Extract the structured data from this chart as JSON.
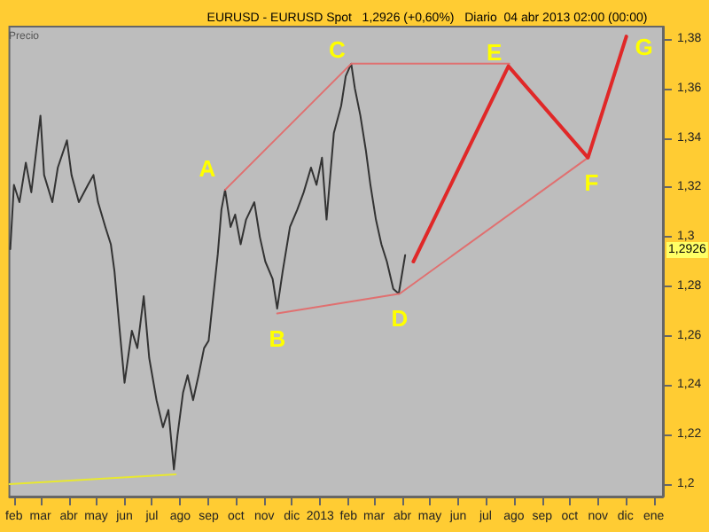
{
  "chart_data": {
    "type": "line",
    "title": "EURUSD - EURUSD Spot   1,2926 (+0,60%)   Diario  04 abr 2013 02:00 (00:00)",
    "ylabel": "Precio",
    "xlim": [
      "2012-01-27",
      "2014-01-11"
    ],
    "xticks": [
      {
        "value": "2012-02-01",
        "label": "feb"
      },
      {
        "value": "2012-03-01",
        "label": "mar"
      },
      {
        "value": "2012-04-01",
        "label": "abr"
      },
      {
        "value": "2012-05-01",
        "label": "may"
      },
      {
        "value": "2012-06-01",
        "label": "jun"
      },
      {
        "value": "2012-07-01",
        "label": "jul"
      },
      {
        "value": "2012-08-01",
        "label": "ago"
      },
      {
        "value": "2012-09-01",
        "label": "sep"
      },
      {
        "value": "2012-10-01",
        "label": "oct"
      },
      {
        "value": "2012-11-01",
        "label": "nov"
      },
      {
        "value": "2012-12-01",
        "label": "dic"
      },
      {
        "value": "2013-01-01",
        "label": "2013"
      },
      {
        "value": "2013-02-01",
        "label": "feb"
      },
      {
        "value": "2013-03-01",
        "label": "mar"
      },
      {
        "value": "2013-04-01",
        "label": "abr"
      },
      {
        "value": "2013-05-01",
        "label": "may"
      },
      {
        "value": "2013-06-01",
        "label": "jun"
      },
      {
        "value": "2013-07-01",
        "label": "jul"
      },
      {
        "value": "2013-08-01",
        "label": "ago"
      },
      {
        "value": "2013-09-01",
        "label": "sep"
      },
      {
        "value": "2013-10-01",
        "label": "oct"
      },
      {
        "value": "2013-11-01",
        "label": "nov"
      },
      {
        "value": "2013-12-01",
        "label": "dic"
      },
      {
        "value": "2014-01-01",
        "label": "ene"
      }
    ],
    "ylim": [
      1.195,
      1.385
    ],
    "yticks": [
      {
        "value": 1.2,
        "label": "1,2"
      },
      {
        "value": 1.22,
        "label": "1,22"
      },
      {
        "value": 1.24,
        "label": "1,24"
      },
      {
        "value": 1.26,
        "label": "1,26"
      },
      {
        "value": 1.28,
        "label": "1,28"
      },
      {
        "value": 1.3,
        "label": "1,3"
      },
      {
        "value": 1.32,
        "label": "1,32"
      },
      {
        "value": 1.34,
        "label": "1,34"
      },
      {
        "value": 1.36,
        "label": "1,36"
      },
      {
        "value": 1.38,
        "label": "1,38"
      }
    ],
    "series": [
      {
        "color": "#333333",
        "line_style": "solid",
        "x": [
          "2012-01-28",
          "2012-02-01",
          "2012-02-07",
          "2012-02-14",
          "2012-02-20",
          "2012-03-01",
          "2012-03-05",
          "2012-03-14",
          "2012-03-20",
          "2012-03-30",
          "2012-04-04",
          "2012-04-12",
          "2012-04-22",
          "2012-04-28",
          "2012-05-03",
          "2012-05-11",
          "2012-05-17",
          "2012-05-21",
          "2012-05-26",
          "2012-06-01",
          "2012-06-09",
          "2012-06-15",
          "2012-06-22",
          "2012-06-28",
          "2012-07-06",
          "2012-07-13",
          "2012-07-19",
          "2012-07-25",
          "2012-07-29",
          "2012-08-04",
          "2012-08-09",
          "2012-08-15",
          "2012-08-21",
          "2012-08-27",
          "2012-09-01",
          "2012-09-05",
          "2012-09-11",
          "2012-09-15",
          "2012-09-19",
          "2012-09-25",
          "2012-09-30",
          "2012-10-06",
          "2012-10-12",
          "2012-10-21",
          "2012-10-27",
          "2012-11-02",
          "2012-11-10",
          "2012-11-15",
          "2012-11-21",
          "2012-11-29",
          "2012-12-07",
          "2012-12-14",
          "2012-12-22",
          "2012-12-28",
          "2013-01-03",
          "2013-01-08",
          "2013-01-16",
          "2013-01-24",
          "2013-01-29",
          "2013-02-04",
          "2013-02-08",
          "2013-02-14",
          "2013-02-20",
          "2013-02-25",
          "2013-03-03",
          "2013-03-09",
          "2013-03-15",
          "2013-03-22",
          "2013-03-28",
          "2013-04-04"
        ],
        "values": [
          1.295,
          1.321,
          1.314,
          1.33,
          1.318,
          1.349,
          1.325,
          1.314,
          1.328,
          1.339,
          1.325,
          1.314,
          1.321,
          1.325,
          1.314,
          1.304,
          1.297,
          1.286,
          1.265,
          1.241,
          1.262,
          1.255,
          1.276,
          1.251,
          1.234,
          1.223,
          1.23,
          1.206,
          1.22,
          1.237,
          1.244,
          1.234,
          1.244,
          1.255,
          1.258,
          1.272,
          1.293,
          1.311,
          1.319,
          1.304,
          1.309,
          1.297,
          1.307,
          1.314,
          1.3,
          1.29,
          1.283,
          1.271,
          1.286,
          1.304,
          1.311,
          1.318,
          1.328,
          1.321,
          1.332,
          1.307,
          1.342,
          1.353,
          1.365,
          1.37,
          1.36,
          1.349,
          1.335,
          1.321,
          1.307,
          1.297,
          1.29,
          1.279,
          1.277,
          1.2926
        ]
      },
      {
        "color": "#e07070",
        "line_style": "solid",
        "x": [
          "2012-09-19",
          "2013-02-04",
          "2013-07-27"
        ],
        "values": [
          1.319,
          1.37,
          1.37
        ]
      },
      {
        "color": "#e07070",
        "line_style": "solid",
        "x": [
          "2012-11-15",
          "2013-03-29",
          "2013-10-21"
        ],
        "values": [
          1.269,
          1.277,
          1.332
        ]
      },
      {
        "color": "#e02828",
        "line_style": "solid",
        "x": [
          "2013-04-13",
          "2013-07-26",
          "2013-10-21",
          "2013-12-02"
        ],
        "values": [
          1.29,
          1.369,
          1.332,
          1.381
        ]
      },
      {
        "color": "#e8e830",
        "line_style": "solid",
        "x": [
          "2012-01-27",
          "2012-07-27"
        ],
        "values": [
          1.2,
          1.204
        ]
      }
    ],
    "annotations": [
      {
        "text": "A",
        "x": "2012-09-19",
        "y": 1.319
      },
      {
        "text": "B",
        "x": "2012-11-15",
        "y": 1.269
      },
      {
        "text": "C",
        "x": "2013-02-04",
        "y": 1.37
      },
      {
        "text": "D",
        "x": "2013-03-29",
        "y": 1.277
      },
      {
        "text": "E",
        "x": "2013-07-26",
        "y": 1.369
      },
      {
        "text": "F",
        "x": "2013-10-21",
        "y": 1.332
      },
      {
        "text": "G",
        "x": "2013-12-02",
        "y": 1.381
      },
      "1,2926"
    ],
    "grid": false,
    "marker": "none"
  }
}
